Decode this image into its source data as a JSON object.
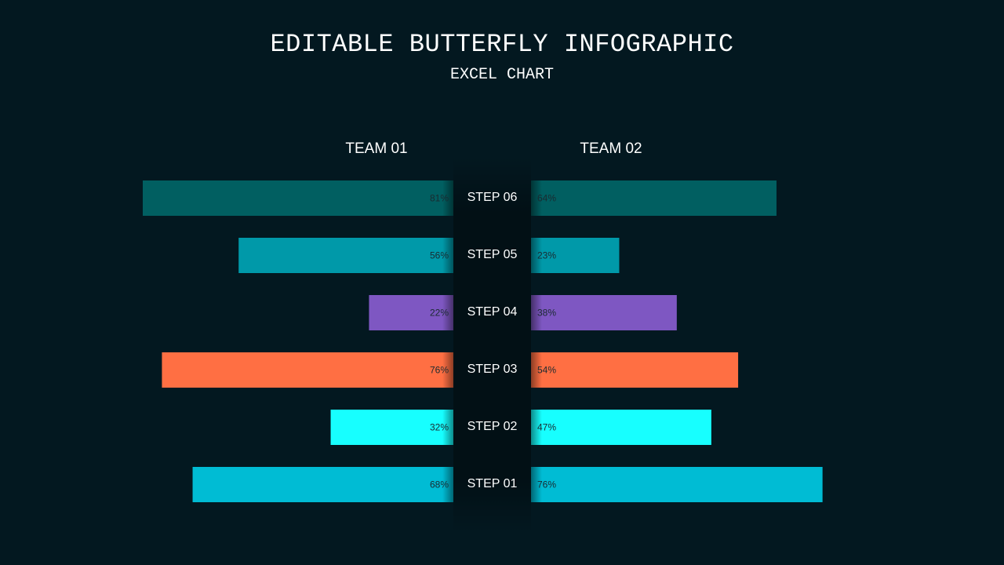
{
  "title": "EDITABLE BUTTERFLY INFOGRAPHIC",
  "subtitle": "EXCEL CHART",
  "colors": {
    "background": "#031820",
    "label_dark": "#1a2a30"
  },
  "chart_data": {
    "type": "bar",
    "orientation": "horizontal-butterfly",
    "categories": [
      "STEP 06",
      "STEP 05",
      "STEP 04",
      "STEP 03",
      "STEP 02",
      "STEP 01"
    ],
    "series": [
      {
        "name": "TEAM 01",
        "values": [
          81,
          56,
          22,
          76,
          32,
          68
        ],
        "labels": [
          "81%",
          "56%",
          "22%",
          "76%",
          "32%",
          "68%"
        ]
      },
      {
        "name": "TEAM 02",
        "values": [
          64,
          23,
          38,
          54,
          47,
          76
        ],
        "labels": [
          "64%",
          "23%",
          "38%",
          "54%",
          "47%",
          "76%"
        ]
      }
    ],
    "bar_colors": [
      "#015f61",
      "#0099a9",
      "#7e57c2",
      "#ff6f43",
      "#17ffff",
      "#00bcd4"
    ],
    "unit": "%",
    "xlim": [
      0,
      100
    ],
    "grid": false,
    "legend": "top"
  }
}
